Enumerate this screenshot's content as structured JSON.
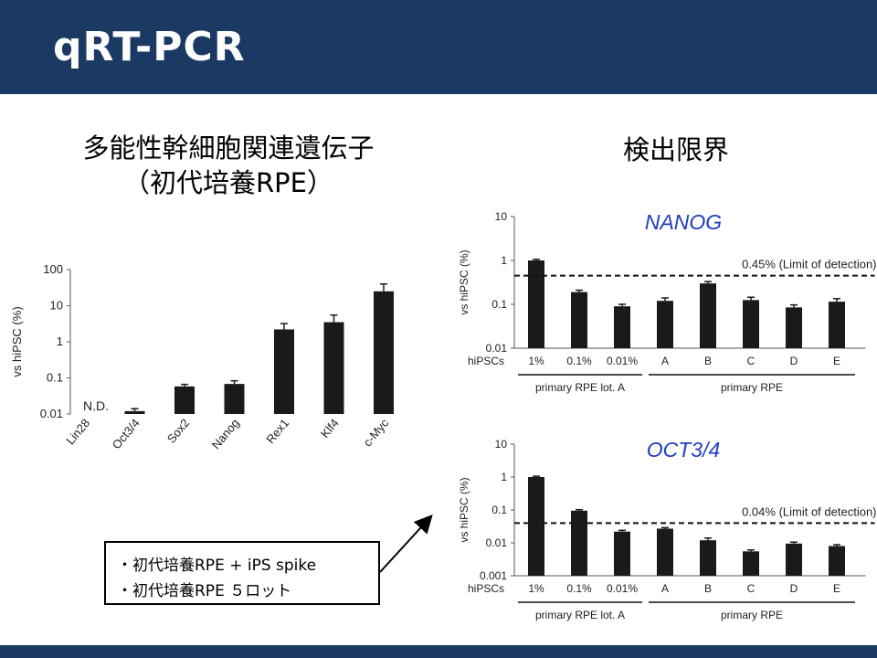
{
  "slide": {
    "title": "qRT-PCR",
    "left_heading_line1": "多能性幹細胞関連遺伝子",
    "left_heading_line2": "（初代培養RPE）",
    "right_heading": "検出限界",
    "legend": [
      "・初代培養RPE + iPS spike",
      "・初代培養RPE ５ロット"
    ]
  },
  "colors": {
    "header": "#1b3a63",
    "bar": "#1a1a1a",
    "chart_title": "#1f3fbf"
  },
  "chart_data": [
    {
      "type": "bar",
      "scale": "log",
      "ylabel": "vs hiPSC (%)",
      "ylim": [
        0.01,
        100
      ],
      "yticks": [
        "100",
        "10",
        "1",
        "0.1",
        "0.01"
      ],
      "categories": [
        "Lin28",
        "Oct3/4",
        "Sox2",
        "Nanog",
        "Rex1",
        "Klf4",
        "c-Myc"
      ],
      "values": [
        null,
        0.012,
        0.058,
        0.068,
        2.2,
        3.5,
        25
      ],
      "errors": [
        null,
        0.002,
        0.008,
        0.015,
        1.0,
        2.0,
        15
      ],
      "annotation": "N.D."
    },
    {
      "type": "bar",
      "scale": "log",
      "title": "NANOG",
      "ylabel": "vs hiPSC (%)",
      "ylim": [
        0.01,
        10
      ],
      "yticks": [
        "10",
        "1",
        "0.1",
        "0.01"
      ],
      "row_label": "hiPSCs",
      "categories": [
        "1%",
        "0.1%",
        "0.01%",
        "A",
        "B",
        "C",
        "D",
        "E"
      ],
      "values": [
        1.0,
        0.19,
        0.09,
        0.12,
        0.3,
        0.125,
        0.085,
        0.115
      ],
      "errors": [
        0.06,
        0.02,
        0.01,
        0.02,
        0.03,
        0.02,
        0.012,
        0.02
      ],
      "threshold": 0.45,
      "threshold_label": "0.45% (Limit of detection)",
      "groups": [
        "primary RPE lot. A",
        "primary RPE"
      ]
    },
    {
      "type": "bar",
      "scale": "log",
      "title": "OCT3/4",
      "ylabel": "vs hiPSC (%)",
      "ylim": [
        0.001,
        10
      ],
      "yticks": [
        "10",
        "1",
        "0.1",
        "0.01",
        "0.001"
      ],
      "row_label": "hiPSCs",
      "categories": [
        "1%",
        "0.1%",
        "0.01%",
        "A",
        "B",
        "C",
        "D",
        "E"
      ],
      "values": [
        1.0,
        0.095,
        0.022,
        0.027,
        0.012,
        0.0055,
        0.0095,
        0.008
      ],
      "errors": [
        0.06,
        0.007,
        0.002,
        0.002,
        0.002,
        0.0006,
        0.001,
        0.0008
      ],
      "threshold": 0.04,
      "threshold_label": "0.04% (Limit of detection)",
      "groups": [
        "primary RPE lot. A",
        "primary RPE"
      ]
    }
  ]
}
